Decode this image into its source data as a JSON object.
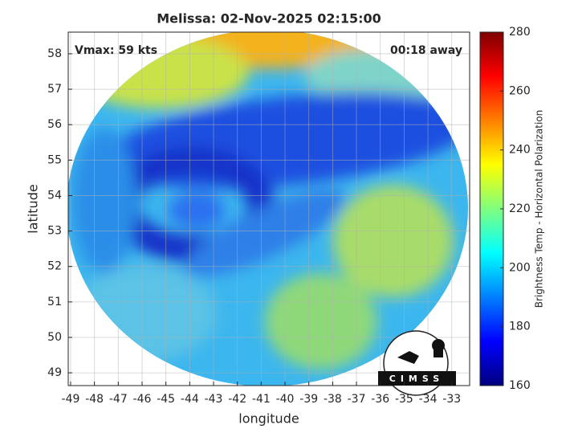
{
  "chart_data": {
    "type": "image-map",
    "title": "Melissa: 02-Nov-2025 02:15:00",
    "annotations": [
      "Vmax: 59 kts",
      "00:18 away"
    ],
    "x_label": "longitude",
    "y_label": "latitude",
    "xlim": [
      -49.1,
      -32.25
    ],
    "ylim": [
      48.64,
      58.61
    ],
    "xticks": [
      -49,
      -48,
      -47,
      -46,
      -45,
      -44,
      -43,
      -42,
      -41,
      -40,
      -39,
      -38,
      -37,
      -36,
      -35,
      -34,
      -33
    ],
    "yticks": [
      49,
      50,
      51,
      52,
      53,
      54,
      55,
      56,
      57,
      58
    ],
    "grid": true,
    "colorbar": {
      "label": "Brightness Temp - Horizontal Polarization",
      "colormap": "jet",
      "lim": [
        160,
        280
      ],
      "ticks": [
        160,
        180,
        200,
        220,
        240,
        260,
        280
      ]
    },
    "logo": "CIMSS"
  }
}
